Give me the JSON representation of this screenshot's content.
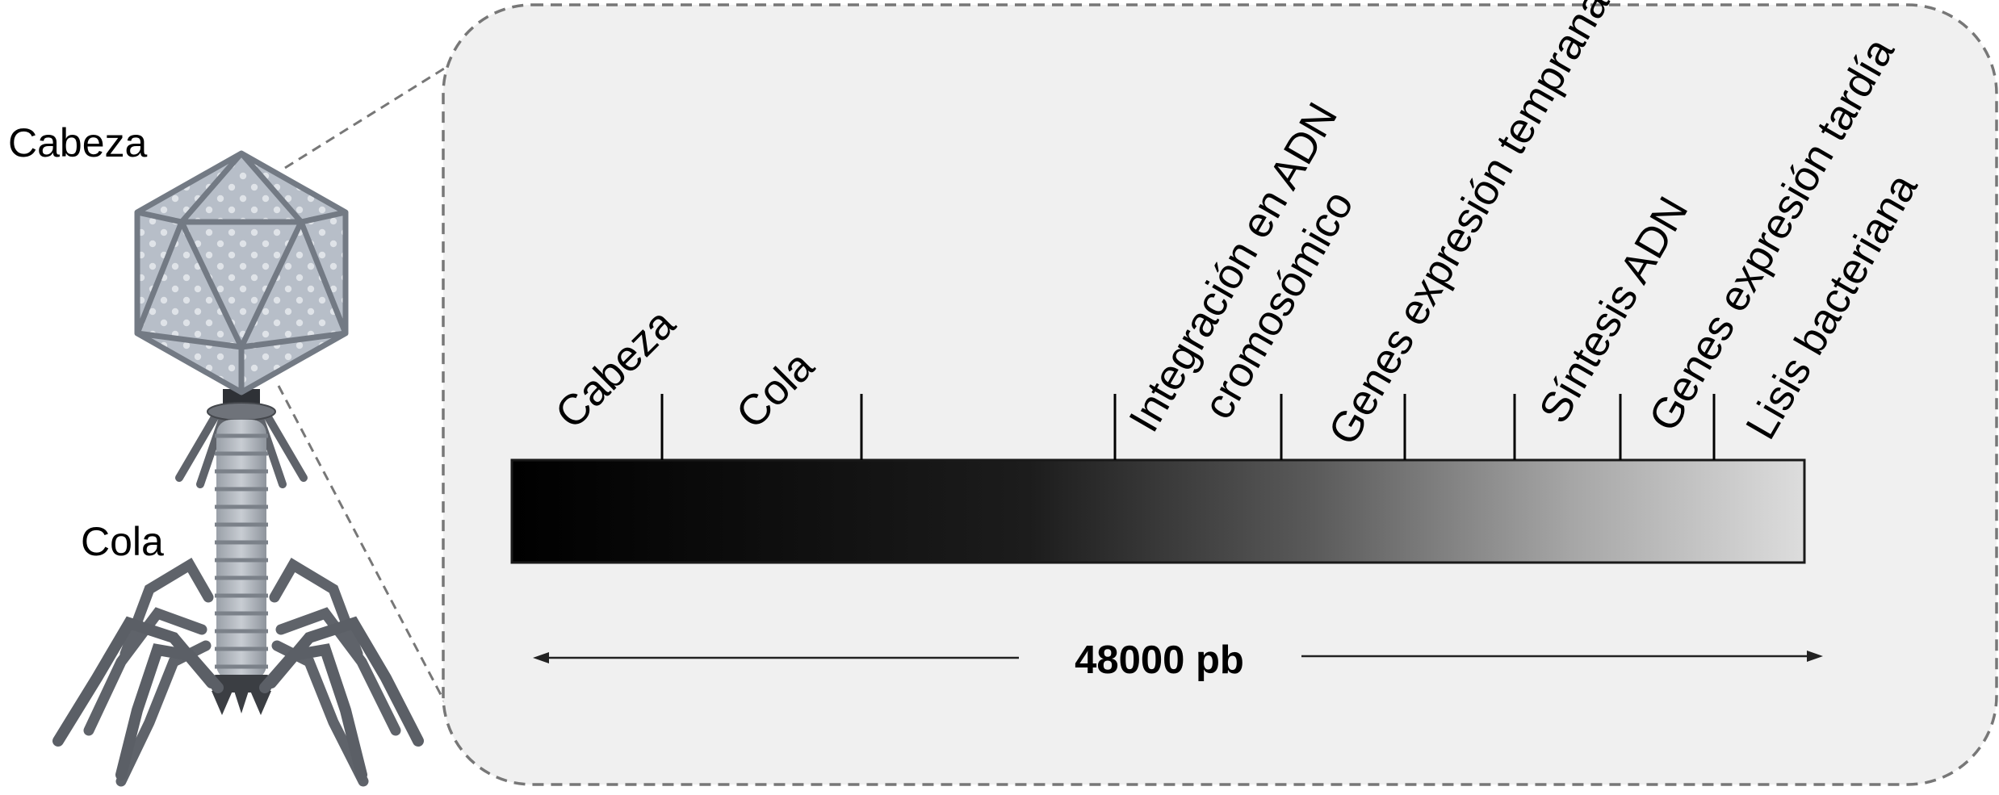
{
  "phage": {
    "head_label": "Cabeza",
    "tail_label": "Cola"
  },
  "genome": {
    "regions": [
      "Cabeza",
      "Cola",
      "Integración en ADN",
      "cromosómico",
      "Genes expresión temprana",
      "Síntesis ADN",
      "Genes expresión tardía",
      "Lisis bacteriana"
    ],
    "length_label": "48000 pb"
  },
  "colors": {
    "panel_fill": "#f0f0f0",
    "panel_border": "#777777",
    "bar_start": "#000000",
    "bar_end": "#dcdcdc",
    "capsid": "#b9c0c9",
    "tail": "#6f737a"
  }
}
